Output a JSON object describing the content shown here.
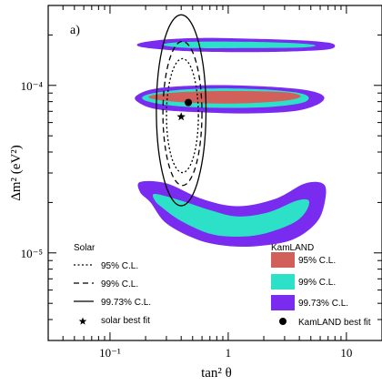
{
  "chart_data": {
    "type": "contour",
    "panel_label": "a)",
    "xlabel": "tan² θ",
    "ylabel": "Δm² (eV²)",
    "x_scale": "log",
    "y_scale": "log",
    "xlim": [
      0.03,
      20
    ],
    "ylim": [
      3e-06,
      0.0003
    ],
    "x_ticks": [
      {
        "value": 0.1,
        "label": "10⁻¹"
      },
      {
        "value": 1,
        "label": "1"
      },
      {
        "value": 10,
        "label": "10"
      }
    ],
    "y_ticks": [
      {
        "value": 1e-05,
        "label": "10⁻⁵"
      },
      {
        "value": 0.0001,
        "label": "10⁻⁴"
      }
    ],
    "legend": {
      "solar_title": "Solar",
      "solar_entries": [
        {
          "style": "dotted",
          "label": "95% C.L."
        },
        {
          "style": "dashed",
          "label": "99% C.L."
        },
        {
          "style": "solid",
          "label": "99.73% C.L."
        },
        {
          "style": "star",
          "label": "solar best fit"
        }
      ],
      "kamland_title": "KamLAND",
      "kamland_entries": [
        {
          "color": "#d15f5a",
          "label": "95% C.L."
        },
        {
          "color": "#2de0c8",
          "label": "99% C.L."
        },
        {
          "color": "#7a2bf0",
          "label": "99.73% C.L."
        },
        {
          "style": "dot",
          "label": "KamLAND best fit"
        }
      ]
    },
    "best_fits": [
      {
        "name": "solar",
        "x": 0.4,
        "y": 6.5e-05
      },
      {
        "name": "kamland",
        "x": 0.46,
        "y": 7.9e-05
      }
    ],
    "kamland_regions": [
      {
        "level": "99.73% C.L.",
        "color": "#7a2bf0",
        "islands": [
          {
            "x": [
              0.18,
              0.3,
              0.6,
              1.5,
              4.0,
              7.0,
              8.0,
              7.0,
              4.0,
              1.5,
              0.6,
              0.3,
              0.18
            ],
            "y": [
              0.000179,
              0.000188,
              0.000192,
              0.00019,
              0.000186,
              0.00018,
              0.000172,
              0.000164,
              0.00016,
              0.000158,
              0.000159,
              0.000163,
              0.00017
            ]
          },
          {
            "x": [
              0.17,
              0.25,
              0.6,
              1.5,
              3.5,
              5.5,
              6.5,
              5.5,
              3.5,
              1.5,
              0.6,
              0.25,
              0.17
            ],
            "y": [
              8.75e-05,
              9.6e-05,
              0.0001,
              9.95e-05,
              9.6e-05,
              9.1e-05,
              8.4e-05,
              7.6e-05,
              7e-05,
              6.8e-05,
              6.9e-05,
              7.2e-05,
              8e-05
            ]
          },
          {
            "x": [
              0.18,
              0.3,
              0.6,
              1.2,
              2.5,
              4.5,
              6.5,
              6.5,
              5.5,
              3.5,
              1.8,
              1.0,
              0.55,
              0.3,
              0.22,
              0.18
            ],
            "y": [
              2.65e-05,
              2.6e-05,
              2.1e-05,
              1.9e-05,
              2.1e-05,
              2.6e-05,
              2.55e-05,
              1.95e-05,
              1.5e-05,
              1.2e-05,
              1.1e-05,
              1.1e-05,
              1.2e-05,
              1.5e-05,
              2e-05,
              2.3e-05
            ]
          }
        ]
      },
      {
        "level": "99% C.L.",
        "color": "#2de0c8",
        "islands": [
          {
            "x": [
              0.3,
              0.5,
              1.5,
              4.0,
              5.5,
              4.0,
              1.5,
              0.5,
              0.3
            ],
            "y": [
              0.000178,
              0.000182,
              0.000182,
              0.000178,
              0.000173,
              0.000168,
              0.000167,
              0.000167,
              0.000172
            ]
          },
          {
            "x": [
              0.2,
              0.35,
              0.8,
              2.0,
              4.0,
              4.8,
              4.0,
              2.0,
              0.8,
              0.35,
              0.2
            ],
            "y": [
              8.75e-05,
              9.35e-05,
              9.6e-05,
              9.45e-05,
              9e-05,
              8.4e-05,
              7.8e-05,
              7.4e-05,
              7.35e-05,
              7.55e-05,
              8.1e-05
            ]
          },
          {
            "x": [
              0.24,
              0.4,
              0.7,
              1.2,
              2.2,
              3.8,
              4.8,
              4.5,
              3.5,
              2.0,
              1.2,
              0.7,
              0.4,
              0.28,
              0.24
            ],
            "y": [
              2.25e-05,
              2.05e-05,
              1.8e-05,
              1.65e-05,
              1.75e-05,
              2.05e-05,
              2.05e-05,
              1.75e-05,
              1.5e-05,
              1.3e-05,
              1.25e-05,
              1.3e-05,
              1.55e-05,
              1.85e-05,
              2.05e-05
            ]
          }
        ]
      },
      {
        "level": "95% C.L.",
        "color": "#d15f5a",
        "islands": [
          {
            "x": [
              0.23,
              0.45,
              1.2,
              3.0,
              4.1,
              3.0,
              1.2,
              0.45,
              0.23
            ],
            "y": [
              8.75e-05,
              9.15e-05,
              9.25e-05,
              9.1e-05,
              8.6e-05,
              8.1e-05,
              7.8e-05,
              7.9e-05,
              8.3e-05
            ]
          }
        ]
      }
    ],
    "solar_contours": [
      {
        "level": "99.73% C.L.",
        "style": "solid",
        "cx": 0.4,
        "cy": 7.1e-05,
        "rx_dex": 0.21,
        "ry_dex": 0.57
      },
      {
        "level": "99% C.L.",
        "style": "dashed",
        "cx": 0.41,
        "cy": 6.8e-05,
        "rx_dex": 0.165,
        "ry_dex": 0.43
      },
      {
        "level": "95% C.L.",
        "style": "dotted",
        "cx": 0.41,
        "cy": 6.6e-05,
        "rx_dex": 0.135,
        "ry_dex": 0.34
      }
    ]
  }
}
